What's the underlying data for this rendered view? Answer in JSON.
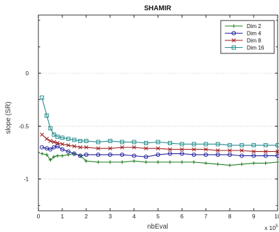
{
  "chart_data": {
    "type": "line",
    "title": "SHAMIR",
    "xlabel": "nbEval",
    "ylabel": "slope (SR)",
    "x_multiplier_label": "x 10^5",
    "xlim": [
      0,
      10
    ],
    "ylim": [
      -1.3,
      0.55
    ],
    "x_ticks": [
      "0",
      "1",
      "2",
      "3",
      "4",
      "5",
      "6",
      "7",
      "8",
      "9",
      "10"
    ],
    "y_ticks": [
      "0",
      "-0.5",
      "-1"
    ],
    "y_tick_values": [
      0,
      -0.5,
      -1
    ],
    "grid": true,
    "legend_position": "top-right",
    "x": [
      0.15,
      0.35,
      0.5,
      0.65,
      0.8,
      1.0,
      1.25,
      1.5,
      1.75,
      2.0,
      2.5,
      3.0,
      3.5,
      4.0,
      4.5,
      5.0,
      5.5,
      6.0,
      6.5,
      7.0,
      7.5,
      8.0,
      8.5,
      9.0,
      9.5,
      10.0
    ],
    "series": [
      {
        "name": "Dim 2",
        "color": "#1a7a1a",
        "marker": "plus",
        "values": [
          -0.76,
          -0.77,
          -0.82,
          -0.79,
          -0.78,
          -0.78,
          -0.77,
          -0.76,
          -0.78,
          -0.83,
          -0.84,
          -0.84,
          -0.84,
          -0.83,
          -0.84,
          -0.84,
          -0.84,
          -0.84,
          -0.84,
          -0.85,
          -0.86,
          -0.87,
          -0.86,
          -0.85,
          -0.85,
          -0.84
        ]
      },
      {
        "name": "Dim 4",
        "color": "#1f1f9c",
        "marker": "circle",
        "values": [
          -0.7,
          -0.71,
          -0.72,
          -0.7,
          -0.69,
          -0.72,
          -0.74,
          -0.76,
          -0.78,
          -0.77,
          -0.77,
          -0.77,
          -0.77,
          -0.78,
          -0.79,
          -0.77,
          -0.76,
          -0.76,
          -0.77,
          -0.77,
          -0.77,
          -0.77,
          -0.78,
          -0.78,
          -0.78,
          -0.78
        ]
      },
      {
        "name": "Dim 8",
        "color": "#9c1a1a",
        "marker": "x",
        "values": [
          -0.58,
          -0.62,
          -0.64,
          -0.65,
          -0.66,
          -0.67,
          -0.68,
          -0.69,
          -0.7,
          -0.7,
          -0.71,
          -0.71,
          -0.7,
          -0.7,
          -0.71,
          -0.71,
          -0.72,
          -0.72,
          -0.72,
          -0.72,
          -0.73,
          -0.73,
          -0.73,
          -0.74,
          -0.74,
          -0.74
        ]
      },
      {
        "name": "Dim 16",
        "color": "#1f8a8a",
        "marker": "square",
        "values": [
          -0.23,
          -0.4,
          -0.52,
          -0.58,
          -0.6,
          -0.61,
          -0.62,
          -0.63,
          -0.64,
          -0.64,
          -0.65,
          -0.64,
          -0.65,
          -0.65,
          -0.66,
          -0.65,
          -0.66,
          -0.67,
          -0.67,
          -0.67,
          -0.67,
          -0.68,
          -0.68,
          -0.68,
          -0.68,
          -0.68
        ]
      }
    ]
  }
}
